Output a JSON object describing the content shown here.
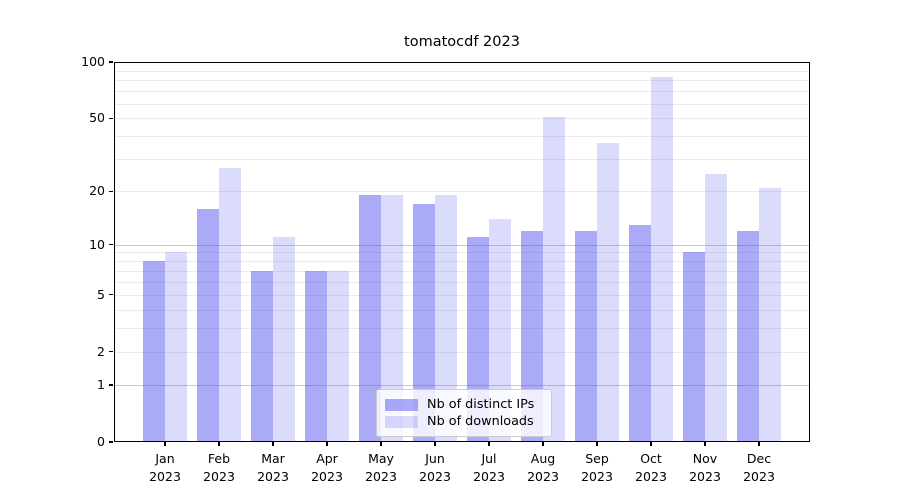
{
  "figure": {
    "title": "tomatocdf 2023"
  },
  "chart_data": {
    "type": "bar",
    "title": "tomatocdf 2023",
    "months": [
      "Jan",
      "Feb",
      "Mar",
      "Apr",
      "May",
      "Jun",
      "Jul",
      "Aug",
      "Sep",
      "Oct",
      "Nov",
      "Dec"
    ],
    "year_label": "2023",
    "categories": [
      "Jan 2023",
      "Feb 2023",
      "Mar 2023",
      "Apr 2023",
      "May 2023",
      "Jun 2023",
      "Jul 2023",
      "Aug 2023",
      "Sep 2023",
      "Oct 2023",
      "Nov 2023",
      "Dec 2023"
    ],
    "series": [
      {
        "name": "Nb of distinct IPs",
        "color": "rgba(85,85,240,0.5)",
        "values": [
          8,
          16,
          7,
          7,
          19,
          17,
          11,
          12,
          12,
          13,
          9,
          12
        ]
      },
      {
        "name": "Nb of downloads",
        "color": "rgba(85,85,240,0.21)",
        "values": [
          9,
          27,
          11,
          7,
          19,
          19,
          14,
          51,
          37,
          83,
          25,
          21
        ]
      }
    ],
    "yscale": "log1p",
    "ylim": [
      0,
      100
    ],
    "y_ticks": [
      100,
      50,
      20,
      10,
      5,
      2,
      1,
      0
    ],
    "grid": {
      "minor": [
        2,
        3,
        4,
        5,
        6,
        7,
        8,
        9,
        20,
        30,
        40,
        50,
        60,
        70,
        80,
        90
      ],
      "major": [
        1,
        10
      ]
    },
    "legend": {
      "position": "lower center"
    },
    "colors": {
      "axis": "#000000",
      "text": "#000000",
      "grid_minor": "#ebebeb",
      "grid_major": "#c9c9c9",
      "background": "#ffffff",
      "bar_base": "#5555f0"
    }
  }
}
